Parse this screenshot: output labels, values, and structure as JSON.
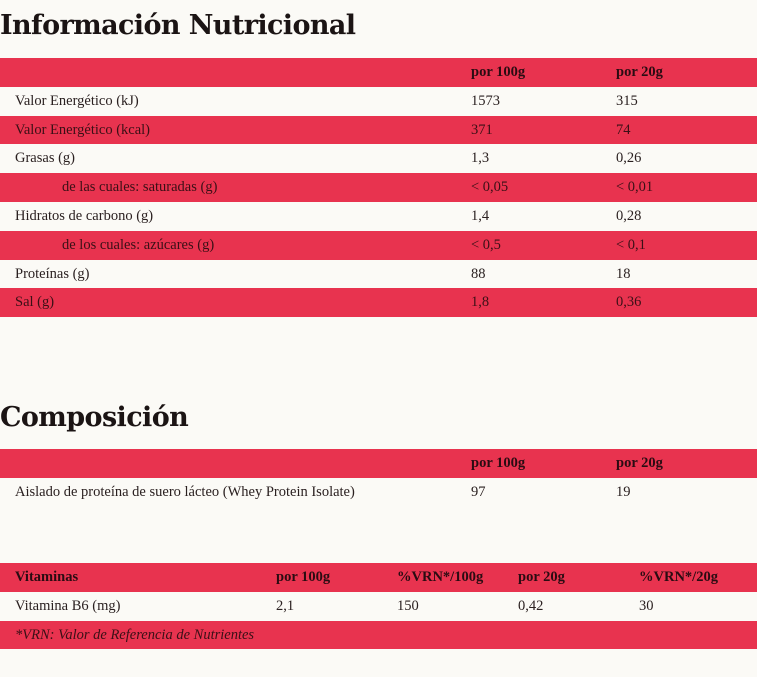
{
  "nutrition": {
    "title": "Información Nutricional",
    "headers": [
      "",
      "por 100g",
      "por 20g"
    ],
    "rows": [
      {
        "label": "Valor Energético (kJ)",
        "per100": "1573",
        "per20": "315"
      },
      {
        "label": "Valor Energético (kcal)",
        "per100": "371",
        "per20": "74"
      },
      {
        "label": "Grasas (g)",
        "per100": "1,3",
        "per20": "0,26"
      },
      {
        "label": "de las cuales: saturadas (g)",
        "per100": "< 0,05",
        "per20": "< 0,01"
      },
      {
        "label": "Hidratos de carbono (g)",
        "per100": "1,4",
        "per20": "0,28"
      },
      {
        "label": "de los cuales: azúcares (g)",
        "per100": "< 0,5",
        "per20": "< 0,1"
      },
      {
        "label": "Proteínas (g)",
        "per100": "88",
        "per20": "18"
      },
      {
        "label": "Sal (g)",
        "per100": "1,8",
        "per20": "0,36"
      }
    ]
  },
  "composition": {
    "title": "Composición",
    "headers": [
      "",
      "por 100g",
      "por 20g"
    ],
    "rows": [
      {
        "label": "Aislado de proteína de suero lácteo (Whey Protein Isolate)",
        "per100": "97",
        "per20": "19"
      }
    ]
  },
  "vitamins": {
    "headers": [
      "Vitaminas",
      "por 100g",
      "%VRN*/100g",
      "por 20g",
      "%VRN*/20g"
    ],
    "rows": [
      {
        "label": "Vitamina B6 (mg)",
        "per100": "2,1",
        "vrn100": "150",
        "per20": "0,42",
        "vrn20": "30"
      }
    ],
    "footnote": "*VRN: Valor de Referencia de Nutrientes"
  },
  "colors": {
    "accent": "#e8334f",
    "background": "#fbfaf6",
    "text": "#2a2020"
  }
}
